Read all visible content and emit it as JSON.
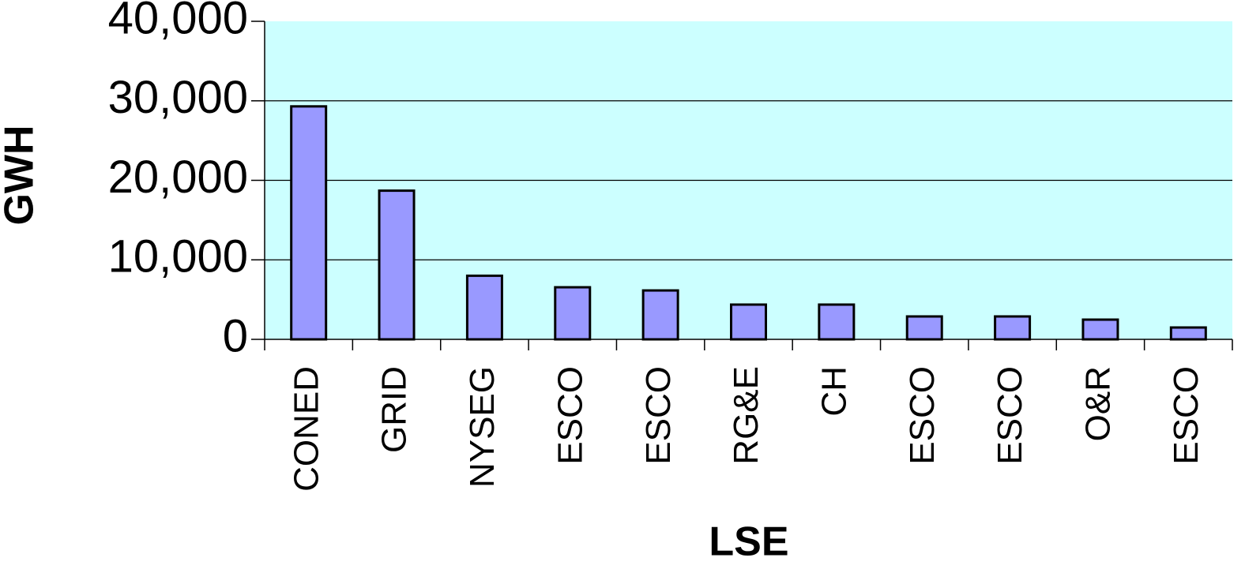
{
  "chart_data": {
    "type": "bar",
    "x_label": "LSE",
    "y_label": "GWH",
    "categories": [
      "CONED",
      "GRID",
      "NYSEG",
      "ESCO",
      "ESCO",
      "RG&E",
      "CH",
      "ESCO",
      "ESCO",
      "O&R",
      "ESCO"
    ],
    "values": [
      29300,
      18700,
      8000,
      6550,
      6150,
      4370,
      4370,
      2880,
      2880,
      2480,
      1490
    ],
    "color": "#9999ff",
    "background": "#ccffff",
    "ylim": [
      0,
      40000
    ],
    "yticks": [
      0,
      {
        "value": 10000,
        "label": "10,000"
      },
      {
        "value": 20000,
        "label": "20,000"
      },
      {
        "value": 30000,
        "label": "30,000"
      },
      {
        "value": 40000,
        "label": "40,000"
      }
    ],
    "grid": true
  }
}
